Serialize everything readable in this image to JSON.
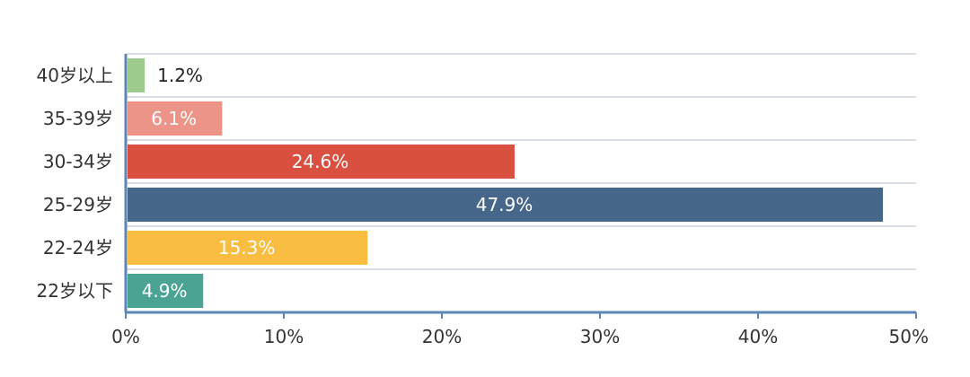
{
  "chart_data": {
    "type": "bar",
    "orientation": "horizontal",
    "categories": [
      "40岁以上",
      "35-39岁",
      "30-34岁",
      "25-29岁",
      "22-24岁",
      "22岁以下"
    ],
    "values": [
      1.2,
      6.1,
      24.6,
      47.9,
      15.3,
      4.9
    ],
    "value_labels": [
      "1.2%",
      "6.1%",
      "24.6%",
      "47.9%",
      "15.3%",
      "4.9%"
    ],
    "colors": [
      "#9ccb8c",
      "#ec9488",
      "#d95040",
      "#46678a",
      "#f9bd42",
      "#4ba394"
    ],
    "label_colors": [
      "#222222",
      "#ffffff",
      "#ffffff",
      "#ffffff",
      "#ffffff",
      "#ffffff"
    ],
    "xlim": [
      0,
      50
    ],
    "x_ticks": [
      0,
      10,
      20,
      30,
      40,
      50
    ],
    "x_tick_labels": [
      "0%",
      "10%",
      "20%",
      "30%",
      "40%",
      "50%"
    ],
    "grid": true,
    "title": "",
    "xlabel": "",
    "ylabel": ""
  }
}
